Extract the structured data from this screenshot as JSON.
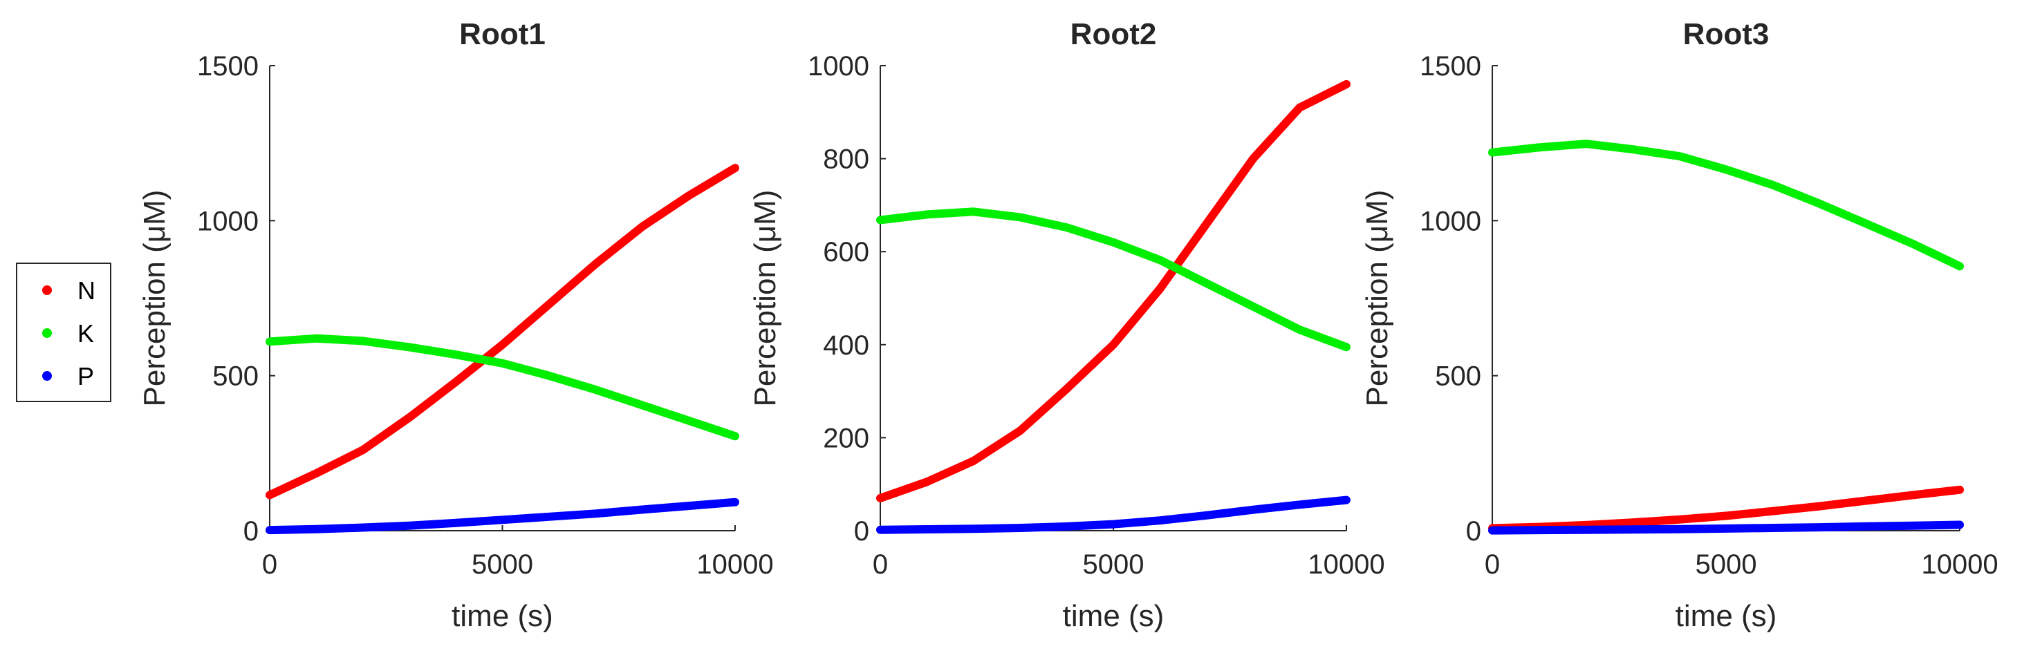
{
  "legend": {
    "entries": [
      {
        "label": "N",
        "color": "#ff0000"
      },
      {
        "label": "K",
        "color": "#00ee00"
      },
      {
        "label": "P",
        "color": "#0000ff"
      }
    ],
    "placement": "left"
  },
  "chart_data": [
    {
      "type": "line",
      "title": "Root1",
      "xlabel": "time (s)",
      "ylabel": "Perception (μM)",
      "xlim": [
        0,
        10000
      ],
      "ylim": [
        0,
        1500
      ],
      "xticks": [
        0,
        5000,
        10000
      ],
      "xtick_labels": [
        "0",
        "5000",
        "10000"
      ],
      "yticks": [
        0,
        500,
        1000,
        1500
      ],
      "ytick_labels": [
        "0",
        "500",
        "1000",
        "1500"
      ],
      "x": [
        0,
        1000,
        2000,
        3000,
        4000,
        5000,
        6000,
        7000,
        8000,
        9000,
        10000
      ],
      "series": [
        {
          "name": "N",
          "color": "#ff0000",
          "values": [
            115,
            185,
            260,
            365,
            480,
            600,
            730,
            860,
            980,
            1080,
            1170
          ]
        },
        {
          "name": "K",
          "color": "#00ee00",
          "values": [
            610,
            620,
            612,
            592,
            568,
            540,
            500,
            455,
            405,
            355,
            305
          ]
        },
        {
          "name": "P",
          "color": "#0000ff",
          "values": [
            2,
            5,
            10,
            16,
            25,
            35,
            45,
            55,
            68,
            80,
            92
          ]
        }
      ]
    },
    {
      "type": "line",
      "title": "Root2",
      "xlabel": "time (s)",
      "ylabel": "Perception (μM)",
      "xlim": [
        0,
        10000
      ],
      "ylim": [
        0,
        1000
      ],
      "xticks": [
        0,
        5000,
        10000
      ],
      "xtick_labels": [
        "0",
        "5000",
        "10000"
      ],
      "yticks": [
        0,
        200,
        400,
        600,
        800,
        1000
      ],
      "ytick_labels": [
        "0",
        "200",
        "400",
        "600",
        "800",
        "1000"
      ],
      "x": [
        0,
        1000,
        2000,
        3000,
        4000,
        5000,
        6000,
        7000,
        8000,
        9000,
        10000
      ],
      "series": [
        {
          "name": "N",
          "color": "#ff0000",
          "values": [
            70,
            105,
            150,
            215,
            305,
            400,
            520,
            660,
            800,
            910,
            960
          ]
        },
        {
          "name": "K",
          "color": "#00ee00",
          "values": [
            668,
            680,
            686,
            674,
            652,
            620,
            582,
            532,
            482,
            432,
            395
          ]
        },
        {
          "name": "P",
          "color": "#0000ff",
          "values": [
            2,
            3,
            4,
            6,
            9,
            14,
            22,
            33,
            45,
            56,
            66
          ]
        }
      ]
    },
    {
      "type": "line",
      "title": "Root3",
      "xlabel": "time (s)",
      "ylabel": "Perception (μM)",
      "xlim": [
        0,
        10000
      ],
      "ylim": [
        0,
        1500
      ],
      "xticks": [
        0,
        5000,
        10000
      ],
      "xtick_labels": [
        "0",
        "5000",
        "10000"
      ],
      "yticks": [
        0,
        500,
        1000,
        1500
      ],
      "ytick_labels": [
        "0",
        "500",
        "1000",
        "1500"
      ],
      "x": [
        0,
        1000,
        2000,
        3000,
        4000,
        5000,
        6000,
        7000,
        8000,
        9000,
        10000
      ],
      "series": [
        {
          "name": "N",
          "color": "#ff0000",
          "values": [
            8,
            12,
            18,
            26,
            36,
            48,
            63,
            79,
            97,
            115,
            132
          ]
        },
        {
          "name": "K",
          "color": "#00ee00",
          "values": [
            1220,
            1236,
            1248,
            1230,
            1208,
            1165,
            1115,
            1055,
            990,
            925,
            853
          ]
        },
        {
          "name": "P",
          "color": "#0000ff",
          "values": [
            1,
            2,
            3,
            4,
            5,
            7,
            9,
            11,
            14,
            16,
            19
          ]
        }
      ]
    }
  ]
}
